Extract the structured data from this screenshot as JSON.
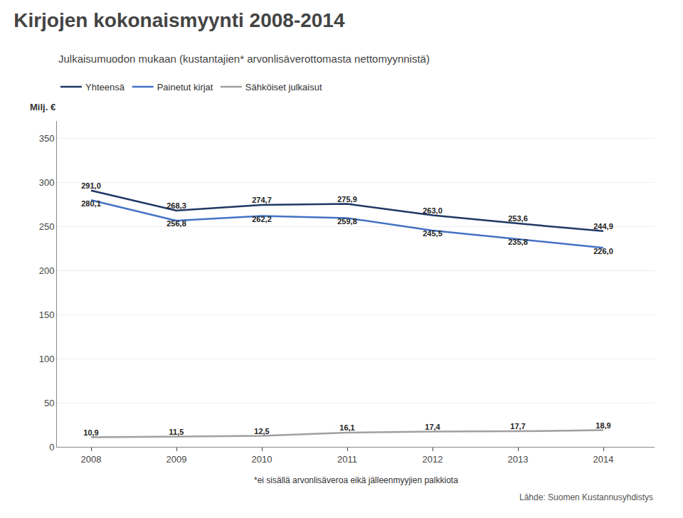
{
  "chart_data": {
    "type": "line",
    "title": "Kirjojen kokonaismyynti 2008‑2014",
    "subtitle": "Julkaisumuodon mukaan (kustantajien* arvonlisäverottomasta nettomyynnistä)",
    "ylabel": "Milj. €",
    "footnote": "*ei sisällä arvonlisäveroa eikä jälleenmyyjien palkkiota",
    "source": "Lähde: Suomen Kustannusyhdistys",
    "x": [
      2008,
      2009,
      2010,
      2011,
      2012,
      2013,
      2014
    ],
    "xlim": [
      2007.6,
      2014.6
    ],
    "xticks": [
      2008,
      2009,
      2010,
      2011,
      2012,
      2013,
      2014
    ],
    "ylim": [
      0,
      370
    ],
    "yticks": [
      0,
      50,
      100,
      150,
      200,
      250,
      300,
      350
    ],
    "grid": true,
    "legend": "top",
    "data_labels": true,
    "series": [
      {
        "name": "Yhteensä",
        "color": "#1F3864",
        "values": [
          291.0,
          268.3,
          274.7,
          275.9,
          263.0,
          253.6,
          244.9
        ],
        "value_labels": [
          "291,0",
          "268,3",
          "274,7",
          "275,9",
          "263,0",
          "253,6",
          "244,9"
        ]
      },
      {
        "name": "Painetut kirjat",
        "color": "#4472C4",
        "values": [
          280.1,
          256.8,
          262.2,
          259.8,
          245.5,
          235.8,
          226.0
        ],
        "value_labels": [
          "280,1",
          "256,8",
          "262,2",
          "259,8",
          "245,5",
          "235,8",
          "226,0"
        ]
      },
      {
        "name": "Sähköiset julkaisut",
        "color": "#A0A0A0",
        "values": [
          10.9,
          11.5,
          12.5,
          16.1,
          17.4,
          17.7,
          18.9
        ],
        "value_labels": [
          "10,9",
          "11,5",
          "12,5",
          "16,1",
          "17,4",
          "17,7",
          "18,9"
        ]
      }
    ]
  }
}
